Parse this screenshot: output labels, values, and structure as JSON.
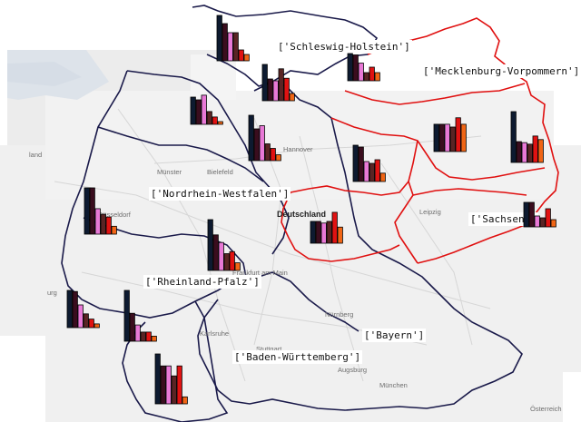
{
  "colors": {
    "map_background": "#f0f0f0",
    "water": "#d3dde8",
    "west_border": "#1a1a4a",
    "east_border": "#e01010",
    "bar_colors": [
      "#0d1a30",
      "#3a0d1e",
      "#e879d6",
      "#5a2424",
      "#e01212",
      "#f06515"
    ]
  },
  "labels": [
    {
      "text": "['Schleswig-Holstein']"
    },
    {
      "text": "['Mecklenburg-Vorpommern']"
    },
    {
      "text": "['Nordrhein-Westfalen']"
    },
    {
      "text": "['Sachsen']"
    },
    {
      "text": "['Rheinland-Pfalz']"
    },
    {
      "text": "['Bayern']"
    },
    {
      "text": "['Baden-Württemberg']"
    }
  ],
  "basemap_text": {
    "country": "Deutschland",
    "cities": [
      "Münster",
      "Bielefeld",
      "Hannover",
      "Düsseldorf",
      "Leipzig",
      "Frankfurt am Main",
      "Nürnberg",
      "Karlsruhe",
      "Stuttgart",
      "Augsburg",
      "München",
      "Österreich",
      "land",
      "urg"
    ]
  },
  "bar_charts": [
    {
      "values": [
        1.0,
        0.82,
        0.62,
        0.62,
        0.24,
        0.14
      ]
    },
    {
      "values": [
        1.0,
        0.95,
        0.65,
        0.3,
        0.5,
        0.3
      ]
    },
    {
      "values": [
        1.0,
        0.6,
        0.55,
        0.88,
        0.62,
        0.2
      ]
    },
    {
      "values": [
        1.0,
        0.9,
        1.07,
        0.47,
        0.27,
        0.1
      ]
    },
    {
      "values": [
        1.0,
        0.7,
        0.77,
        0.37,
        0.27,
        0.13
      ]
    },
    {
      "values": [
        1.0,
        0.95,
        0.55,
        0.5,
        0.6,
        0.23
      ]
    },
    {
      "values": [
        0.59,
        0.59,
        0.59,
        0.53,
        0.73,
        0.59
      ]
    },
    {
      "values": [
        1.0,
        0.41,
        0.39,
        0.36,
        0.52,
        0.45
      ]
    },
    {
      "values": [
        1.0,
        1.0,
        0.55,
        0.43,
        0.37,
        0.17
      ]
    },
    {
      "values": [
        1.0,
        0.7,
        0.55,
        0.33,
        0.37,
        0.15
      ]
    },
    {
      "values": [
        0.65,
        0.65,
        0.6,
        0.65,
        0.92,
        0.48
      ]
    },
    {
      "values": [
        0.54,
        0.54,
        0.24,
        0.2,
        0.4,
        0.16
      ]
    },
    {
      "values": [
        1.0,
        0.97,
        0.61,
        0.37,
        0.23,
        0.1
      ]
    },
    {
      "values": [
        1.0,
        0.55,
        0.32,
        0.18,
        0.18,
        0.1
      ]
    },
    {
      "values": [
        1.0,
        0.76,
        0.76,
        0.56,
        0.76,
        0.14
      ]
    }
  ]
}
